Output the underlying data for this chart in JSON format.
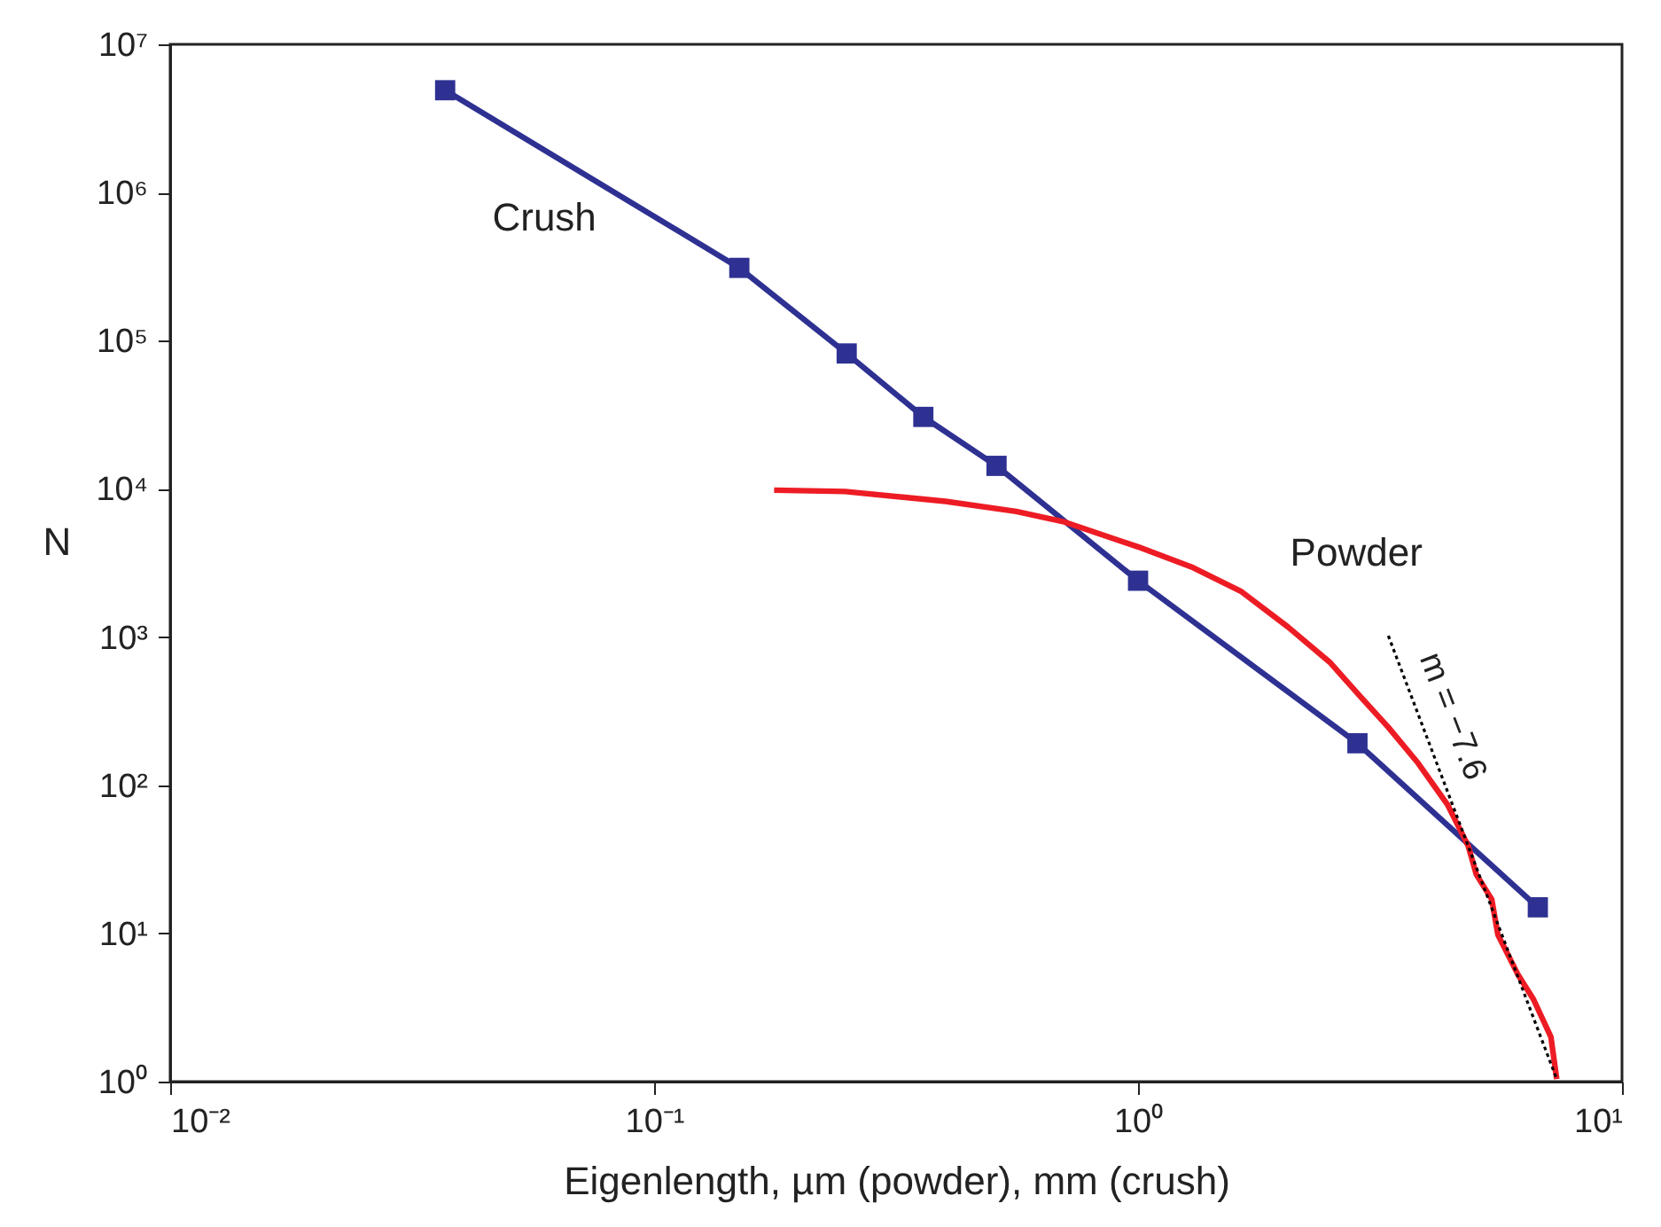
{
  "chart_data": {
    "type": "line",
    "xlabel": "Eigenlength, µm (powder), mm (crush)",
    "ylabel": "N",
    "log": "xy",
    "grid": false,
    "xlim": [
      0.01,
      10
    ],
    "xticks": [
      {
        "value": 0.01,
        "label": "10⁻²"
      },
      {
        "value": 0.1,
        "label": "10⁻¹"
      },
      {
        "value": 1,
        "label": "10⁰"
      },
      {
        "value": 10,
        "label": "10¹"
      }
    ],
    "ylim": [
      1,
      10000000
    ],
    "yticks": [
      {
        "value": 1,
        "label": "10⁰"
      },
      {
        "value": 10,
        "label": "10¹"
      },
      {
        "value": 100,
        "label": "10²"
      },
      {
        "value": 1000,
        "label": "10³"
      },
      {
        "value": 10000,
        "label": "10⁴"
      },
      {
        "value": 100000,
        "label": "10⁵"
      },
      {
        "value": 1000000,
        "label": "10⁶"
      },
      {
        "value": 10000000,
        "label": "10⁷"
      }
    ],
    "series": [
      {
        "name": "Crush",
        "color": "#2e3192",
        "marker": "square",
        "line_style": "solid",
        "x": [
          0.037,
          0.15,
          0.25,
          0.36,
          0.51,
          1.0,
          2.84,
          6.7
        ],
        "values": [
          4900000,
          310000,
          82000,
          30600,
          14300,
          2400,
          192,
          15
        ]
      },
      {
        "name": "Powder",
        "color": "#ed1c24",
        "marker": "none",
        "line_style": "solid",
        "x": [
          0.177,
          0.248,
          0.4,
          0.56,
          0.7,
          1.0,
          1.3,
          1.63,
          2.04,
          2.49,
          2.86,
          3.29,
          3.79,
          4.36,
          4.81,
          5.0,
          5.38,
          5.54,
          6.11,
          6.56,
          7.13,
          7.33
        ],
        "values": [
          9800,
          9600,
          8240,
          7050,
          6020,
          4060,
          2940,
          2040,
          1170,
          676,
          407,
          246,
          141,
          74,
          39,
          25,
          17,
          9.8,
          5.2,
          3.6,
          2.0,
          1.04
        ]
      },
      {
        "color": "#000000",
        "marker": "none",
        "line_style": "dotted",
        "x": [
          3.29,
          7.33
        ],
        "values": [
          1020,
          1.04
        ]
      }
    ],
    "annotations": [
      "m = −7.6"
    ]
  }
}
